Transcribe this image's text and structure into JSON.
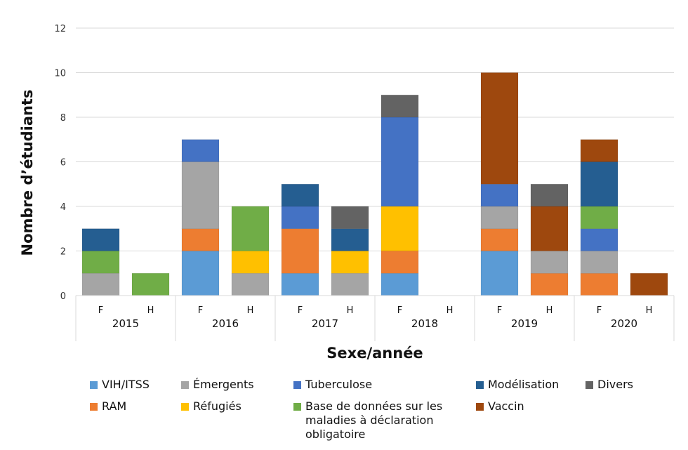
{
  "chart_data": {
    "type": "bar",
    "stacked": true,
    "title": "",
    "xlabel": "Sexe/année",
    "ylabel": "Nombre d’étudiants",
    "ylim": [
      0,
      12
    ],
    "yticks": [
      "0",
      "2",
      "4",
      "6",
      "8",
      "10",
      "12"
    ],
    "grid": true,
    "legend_position": "bottom",
    "groups": [
      "2015",
      "2016",
      "2017",
      "2018",
      "2019",
      "2020"
    ],
    "subcategories": [
      "F",
      "H"
    ],
    "categories": [
      "2015 F",
      "2015 H",
      "2016 F",
      "2016 H",
      "2017 F",
      "2017 H",
      "2018 F",
      "2018 H",
      "2019 F",
      "2019 H",
      "2020 F",
      "2020 H"
    ],
    "series": [
      {
        "name": "VIH/ITSS",
        "color": "#5B9BD5",
        "values": [
          0,
          0,
          2,
          0,
          1,
          0,
          1,
          0,
          2,
          0,
          0,
          0
        ]
      },
      {
        "name": "RAM",
        "color": "#ED7D31",
        "values": [
          0,
          0,
          1,
          0,
          2,
          0,
          1,
          0,
          1,
          1,
          1,
          0
        ]
      },
      {
        "name": "Émergents",
        "color": "#A5A5A5",
        "values": [
          1,
          0,
          3,
          1,
          0,
          1,
          0,
          0,
          1,
          1,
          1,
          0
        ]
      },
      {
        "name": "Réfugiés",
        "color": "#FFC000",
        "values": [
          0,
          0,
          0,
          1,
          0,
          1,
          2,
          0,
          0,
          0,
          0,
          0
        ]
      },
      {
        "name": "Tuberculose",
        "color": "#4472C4",
        "values": [
          0,
          0,
          1,
          0,
          1,
          0,
          4,
          0,
          1,
          0,
          1,
          0
        ]
      },
      {
        "name": "Base de données sur les maladies à déclaration obligatoire",
        "color": "#70AD47",
        "values": [
          1,
          1,
          0,
          2,
          0,
          0,
          0,
          0,
          0,
          0,
          1,
          0
        ]
      },
      {
        "name": "Modélisation",
        "color": "#255E91",
        "values": [
          1,
          0,
          0,
          0,
          1,
          1,
          0,
          0,
          0,
          0,
          2,
          0
        ]
      },
      {
        "name": "Vaccin",
        "color": "#9E480E",
        "values": [
          0,
          0,
          0,
          0,
          0,
          0,
          0,
          0,
          5,
          2,
          1,
          1
        ]
      },
      {
        "name": "Divers",
        "color": "#636363",
        "values": [
          0,
          0,
          0,
          0,
          0,
          1,
          1,
          0,
          0,
          1,
          0,
          0
        ]
      }
    ]
  },
  "legend": {
    "items": [
      {
        "label": "VIH/ITSS",
        "color": "#5B9BD5"
      },
      {
        "label": "Émergents",
        "color": "#A5A5A5"
      },
      {
        "label": "Tuberculose",
        "color": "#4472C4"
      },
      {
        "label": "Modélisation",
        "color": "#255E91"
      },
      {
        "label": "Divers",
        "color": "#636363"
      },
      {
        "label": "RAM",
        "color": "#ED7D31"
      },
      {
        "label": "Réfugiés",
        "color": "#FFC000"
      },
      {
        "label": "Base de données sur les\nmaladies à déclaration\nobligatoire",
        "color": "#70AD47"
      },
      {
        "label": "Vaccin",
        "color": "#9E480E"
      }
    ]
  }
}
